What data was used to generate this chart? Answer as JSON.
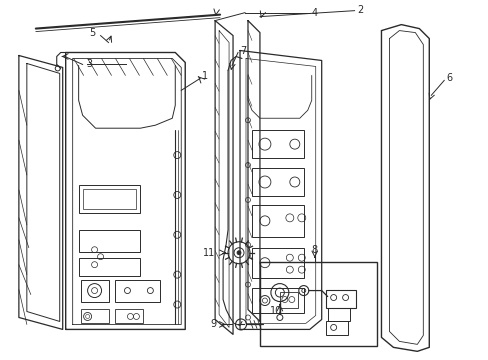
{
  "bg": "#ffffff",
  "lc": "#2a2a2a",
  "fig_w": 4.89,
  "fig_h": 3.6,
  "dpi": 100,
  "label_fs": 7.0,
  "anno_fs": 6.5
}
